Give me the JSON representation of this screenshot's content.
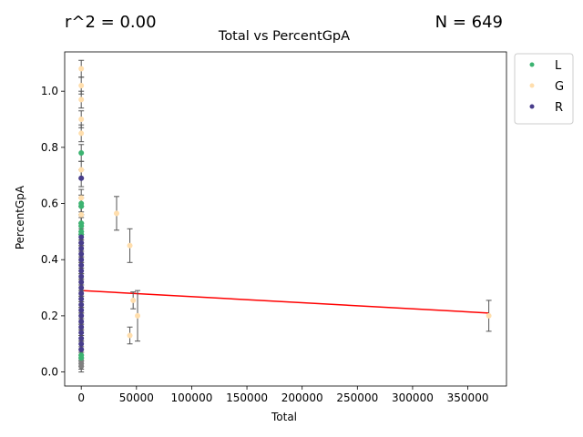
{
  "chart_data": {
    "type": "scatter",
    "title": "Total vs PercentGpA",
    "xlabel": "Total",
    "ylabel": "PercentGpA",
    "xlim": [
      -15000,
      385000
    ],
    "ylim": [
      -0.05,
      1.14
    ],
    "x_ticks": [
      0,
      50000,
      100000,
      150000,
      200000,
      250000,
      300000,
      350000
    ],
    "y_ticks": [
      0.0,
      0.2,
      0.4,
      0.6,
      0.8,
      1.0
    ],
    "annotations": {
      "r2": "r^2 = 0.00",
      "n": "N = 649"
    },
    "legend_position": "outside-upper-right",
    "colors": {
      "L": "#3cb371",
      "G": "#ffdead",
      "R": "#483d8b",
      "error_bar": "#555555",
      "fit_line": "#ff0000"
    },
    "series": [
      {
        "name": "L",
        "points": [
          {
            "x": 0,
            "y": 0.78,
            "err": 0.03
          },
          {
            "x": 0,
            "y": 0.6,
            "err": 0.03
          },
          {
            "x": 0,
            "y": 0.59,
            "err": 0.03
          },
          {
            "x": 0,
            "y": 0.53,
            "err": 0.03
          },
          {
            "x": 0,
            "y": 0.52,
            "err": 0.03
          },
          {
            "x": 0,
            "y": 0.5,
            "err": 0.03
          },
          {
            "x": 0,
            "y": 0.49,
            "err": 0.03
          },
          {
            "x": 0,
            "y": 0.06,
            "err": 0.02
          },
          {
            "x": 0,
            "y": 0.05,
            "err": 0.02
          }
        ]
      },
      {
        "name": "G",
        "points": [
          {
            "x": 0,
            "y": 1.08,
            "err": 0.03
          },
          {
            "x": 0,
            "y": 1.02,
            "err": 0.03
          },
          {
            "x": 0,
            "y": 0.97,
            "err": 0.03
          },
          {
            "x": 0,
            "y": 0.9,
            "err": 0.03
          },
          {
            "x": 0,
            "y": 0.85,
            "err": 0.03
          },
          {
            "x": 0,
            "y": 0.72,
            "err": 0.03
          },
          {
            "x": 0,
            "y": 0.62,
            "err": 0.03
          },
          {
            "x": 0,
            "y": 0.56,
            "err": 0.03
          },
          {
            "x": 32000,
            "y": 0.565,
            "err": 0.06
          },
          {
            "x": 44000,
            "y": 0.45,
            "err": 0.06
          },
          {
            "x": 47000,
            "y": 0.255,
            "err": 0.03
          },
          {
            "x": 51000,
            "y": 0.2,
            "err": 0.09
          },
          {
            "x": 44000,
            "y": 0.13,
            "err": 0.03
          },
          {
            "x": 369000,
            "y": 0.2,
            "err": 0.055
          }
        ]
      },
      {
        "name": "R",
        "points": [
          {
            "x": 0,
            "y": 0.69,
            "err": 0.03
          },
          {
            "x": 0,
            "y": 0.48,
            "err": 0.03
          },
          {
            "x": 0,
            "y": 0.46,
            "err": 0.03
          },
          {
            "x": 0,
            "y": 0.44,
            "err": 0.03
          },
          {
            "x": 0,
            "y": 0.42,
            "err": 0.03
          },
          {
            "x": 0,
            "y": 0.4,
            "err": 0.03
          },
          {
            "x": 0,
            "y": 0.38,
            "err": 0.03
          },
          {
            "x": 0,
            "y": 0.36,
            "err": 0.03
          },
          {
            "x": 0,
            "y": 0.34,
            "err": 0.03
          },
          {
            "x": 0,
            "y": 0.32,
            "err": 0.03
          },
          {
            "x": 0,
            "y": 0.3,
            "err": 0.03
          },
          {
            "x": 0,
            "y": 0.28,
            "err": 0.03
          },
          {
            "x": 0,
            "y": 0.26,
            "err": 0.03
          },
          {
            "x": 0,
            "y": 0.24,
            "err": 0.03
          },
          {
            "x": 0,
            "y": 0.22,
            "err": 0.03
          },
          {
            "x": 0,
            "y": 0.2,
            "err": 0.03
          },
          {
            "x": 0,
            "y": 0.18,
            "err": 0.03
          },
          {
            "x": 0,
            "y": 0.16,
            "err": 0.03
          },
          {
            "x": 0,
            "y": 0.14,
            "err": 0.03
          },
          {
            "x": 0,
            "y": 0.12,
            "err": 0.03
          },
          {
            "x": 0,
            "y": 0.1,
            "err": 0.03
          },
          {
            "x": 0,
            "y": 0.08,
            "err": 0.03
          }
        ]
      }
    ],
    "other_points": [
      {
        "x": 0,
        "y": 0.04,
        "err": 0.02
      },
      {
        "x": 0,
        "y": 0.03,
        "err": 0.02
      },
      {
        "x": 0,
        "y": 0.02,
        "err": 0.02
      }
    ],
    "fit_line": {
      "x": [
        0,
        369000
      ],
      "y": [
        0.29,
        0.21
      ]
    }
  }
}
